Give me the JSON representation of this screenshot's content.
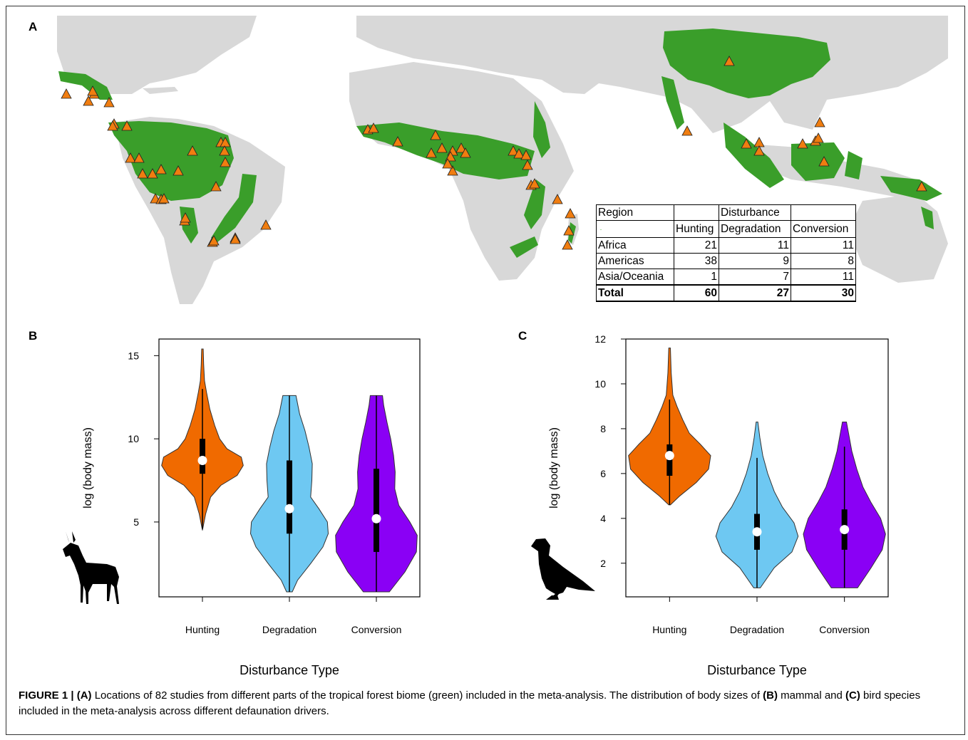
{
  "panels": {
    "a": "A",
    "b": "B",
    "c": "C"
  },
  "colors": {
    "forest": "#3a9e2a",
    "land": "#d8d8d8",
    "marker": "#f07d10",
    "hunting": "#f06a00",
    "degradation": "#6ec8f2",
    "conversion": "#8a00f5"
  },
  "map_table": {
    "header1": [
      "Region",
      "",
      "Disturbance",
      ""
    ],
    "header2": [
      "",
      "Hunting",
      "Degradation",
      "Conversion"
    ],
    "rows": [
      {
        "region": "Africa",
        "hunting": "21",
        "degradation": "11",
        "conversion": "11"
      },
      {
        "region": "Americas",
        "hunting": "38",
        "degradation": "9",
        "conversion": "8"
      },
      {
        "region": "Asia/Oceania",
        "hunting": "1",
        "degradation": "7",
        "conversion": "11"
      },
      {
        "region": "Total",
        "hunting": "60",
        "degradation": "27",
        "conversion": "30"
      }
    ]
  },
  "chart_data": [
    {
      "type": "violin",
      "panel": "B",
      "categories": [
        "Hunting",
        "Degradation",
        "Conversion"
      ],
      "xlabel": "Disturbance Type",
      "ylabel": "log (body mass)",
      "yticks": [
        5,
        10,
        15
      ],
      "ylim": [
        0.5,
        16
      ],
      "series": [
        {
          "name": "Hunting",
          "min": 4.5,
          "q1": 7.9,
          "median": 8.7,
          "q3": 10.0,
          "max": 15.4,
          "whisker_low": 4.6,
          "whisker_high": 13.0,
          "profile": [
            [
              4.5,
              0
            ],
            [
              5.5,
              0.08
            ],
            [
              6.5,
              0.2
            ],
            [
              7.2,
              0.45
            ],
            [
              7.8,
              0.85
            ],
            [
              8.4,
              1
            ],
            [
              8.9,
              0.95
            ],
            [
              9.4,
              0.6
            ],
            [
              10,
              0.42
            ],
            [
              10.8,
              0.3
            ],
            [
              11.8,
              0.18
            ],
            [
              12.8,
              0.1
            ],
            [
              13.5,
              0.05
            ],
            [
              14.5,
              0.03
            ],
            [
              15.4,
              0.02
            ]
          ]
        },
        {
          "name": "Degradation",
          "min": 0.8,
          "q1": 4.3,
          "median": 5.8,
          "q3": 8.7,
          "max": 12.6,
          "whisker_low": 0.8,
          "whisker_high": 12.6,
          "profile": [
            [
              0.8,
              0.07
            ],
            [
              1.5,
              0.2
            ],
            [
              2.5,
              0.52
            ],
            [
              3.5,
              0.82
            ],
            [
              4.3,
              0.95
            ],
            [
              5,
              0.93
            ],
            [
              5.8,
              0.72
            ],
            [
              6.5,
              0.52
            ],
            [
              7.5,
              0.55
            ],
            [
              8.5,
              0.56
            ],
            [
              9.5,
              0.48
            ],
            [
              10.5,
              0.38
            ],
            [
              11.5,
              0.25
            ],
            [
              12.6,
              0.16
            ]
          ]
        },
        {
          "name": "Conversion",
          "min": 0.8,
          "q1": 3.2,
          "median": 5.2,
          "q3": 8.2,
          "max": 12.6,
          "whisker_low": 0.8,
          "whisker_high": 12.6,
          "profile": [
            [
              0.8,
              0.32
            ],
            [
              2,
              0.7
            ],
            [
              3.2,
              0.98
            ],
            [
              4.2,
              1
            ],
            [
              5,
              0.82
            ],
            [
              6,
              0.55
            ],
            [
              7,
              0.45
            ],
            [
              8,
              0.46
            ],
            [
              9,
              0.42
            ],
            [
              10,
              0.35
            ],
            [
              11,
              0.26
            ],
            [
              12,
              0.18
            ],
            [
              12.6,
              0.15
            ]
          ]
        }
      ]
    },
    {
      "type": "violin",
      "panel": "C",
      "categories": [
        "Hunting",
        "Degradation",
        "Conversion"
      ],
      "xlabel": "Disturbance Type",
      "ylabel": "log (body mass)",
      "yticks": [
        2,
        4,
        6,
        8,
        10,
        12
      ],
      "ylim": [
        0.5,
        12
      ],
      "series": [
        {
          "name": "Hunting",
          "min": 4.6,
          "q1": 5.9,
          "median": 6.8,
          "q3": 7.3,
          "max": 11.6,
          "whisker_low": 4.6,
          "whisker_high": 9.3,
          "profile": [
            [
              4.6,
              0.02
            ],
            [
              5,
              0.25
            ],
            [
              5.6,
              0.65
            ],
            [
              6.2,
              0.95
            ],
            [
              6.8,
              1
            ],
            [
              7.3,
              0.75
            ],
            [
              7.8,
              0.48
            ],
            [
              8.4,
              0.32
            ],
            [
              9,
              0.18
            ],
            [
              9.5,
              0.08
            ],
            [
              10.5,
              0.04
            ],
            [
              11.6,
              0.02
            ]
          ]
        },
        {
          "name": "Degradation",
          "min": 0.9,
          "q1": 2.6,
          "median": 3.4,
          "q3": 4.2,
          "max": 8.3,
          "whisker_low": 0.9,
          "whisker_high": 6.7,
          "profile": [
            [
              0.9,
              0.08
            ],
            [
              1.8,
              0.42
            ],
            [
              2.5,
              0.85
            ],
            [
              3.2,
              1
            ],
            [
              3.8,
              0.9
            ],
            [
              4.5,
              0.62
            ],
            [
              5.2,
              0.42
            ],
            [
              6,
              0.26
            ],
            [
              6.8,
              0.14
            ],
            [
              7.6,
              0.07
            ],
            [
              8.3,
              0.02
            ]
          ]
        },
        {
          "name": "Conversion",
          "min": 0.9,
          "q1": 2.6,
          "median": 3.5,
          "q3": 4.4,
          "max": 8.3,
          "whisker_low": 0.9,
          "whisker_high": 7.2,
          "profile": [
            [
              0.9,
              0.32
            ],
            [
              1.8,
              0.65
            ],
            [
              2.6,
              0.92
            ],
            [
              3.3,
              1
            ],
            [
              4,
              0.88
            ],
            [
              4.7,
              0.65
            ],
            [
              5.4,
              0.45
            ],
            [
              6.2,
              0.3
            ],
            [
              7,
              0.18
            ],
            [
              7.8,
              0.1
            ],
            [
              8.3,
              0.05
            ]
          ]
        }
      ]
    }
  ],
  "caption": {
    "figure_label": "FIGURE 1 | ",
    "part1_label": "(A)",
    "part1_text": " Locations of 82 studies from different parts of the tropical forest biome (green) included in the meta-analysis. The distribution of body sizes of ",
    "part2_label": "(B)",
    "part2_text": " mammal and ",
    "part3_label": "(C)",
    "part3_text": " bird species included in the meta-analysis across different defaunation drivers."
  }
}
